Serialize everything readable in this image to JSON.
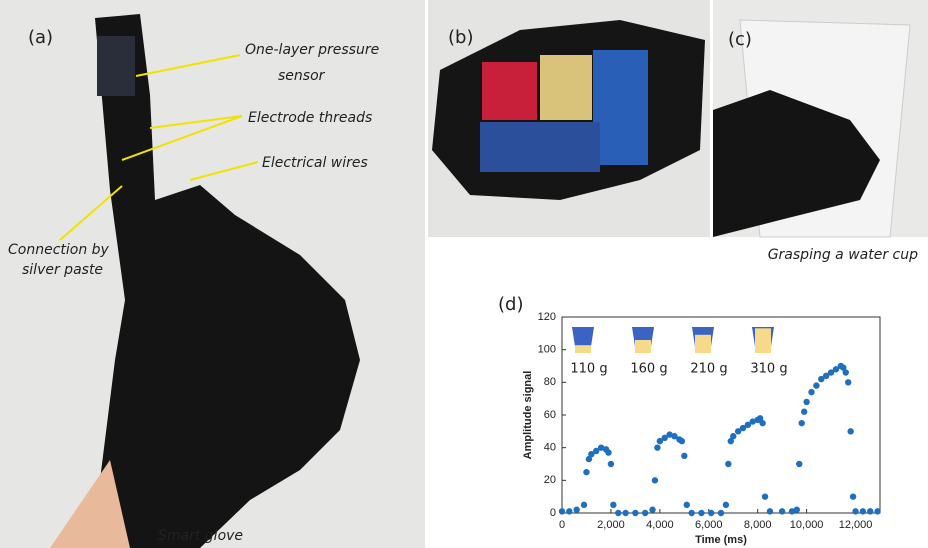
{
  "panels": {
    "a": {
      "label": "(a)",
      "callouts": [
        "One-layer pressure",
        "sensor",
        "Electrode threads",
        "Electrical wires",
        "Connection by",
        "silver paste"
      ],
      "caption": "Smart glove"
    },
    "b": {
      "label": "(b)"
    },
    "c": {
      "label": "(c)",
      "caption": "Grasping a water cup"
    },
    "d": {
      "label": "(d)"
    }
  },
  "chart_data": {
    "type": "scatter",
    "xlabel": "Time (ms)",
    "ylabel": "Amplitude signal",
    "color": "#1f6fbf",
    "annotations": [
      "110 g",
      "160 g",
      "210 g",
      "310 g"
    ],
    "xlim": [
      0,
      13000
    ],
    "ylim": [
      0,
      120
    ],
    "xticks": [
      0,
      {
        "value": 2000,
        "label": "2,000"
      },
      {
        "value": 4000,
        "label": "4,000"
      },
      {
        "value": 6000,
        "label": "6,000"
      },
      {
        "value": 8000,
        "label": "8,000"
      },
      {
        "value": 10000,
        "label": "10,000"
      },
      {
        "value": 12000,
        "label": "12,000"
      }
    ],
    "yticks": [
      0,
      20,
      40,
      60,
      80,
      100,
      120
    ],
    "x": [
      0,
      300,
      600,
      900,
      1000,
      1100,
      1200,
      1400,
      1600,
      1800,
      1900,
      2000,
      2100,
      2300,
      2600,
      3000,
      3400,
      3700,
      3800,
      3900,
      4000,
      4200,
      4400,
      4600,
      4800,
      4900,
      5000,
      5100,
      5300,
      5700,
      6100,
      6500,
      6700,
      6800,
      6900,
      7000,
      7200,
      7400,
      7600,
      7800,
      8000,
      8100,
      8200,
      8300,
      8500,
      9000,
      9400,
      9600,
      9700,
      9800,
      9900,
      10000,
      10200,
      10400,
      10600,
      10800,
      11000,
      11200,
      11400,
      11500,
      11600,
      11700,
      11800,
      11900,
      12000,
      12300,
      12600,
      12900
    ],
    "values": [
      1,
      1,
      2,
      5,
      25,
      33,
      36,
      38,
      40,
      39,
      37,
      30,
      5,
      0,
      0,
      0,
      0,
      2,
      20,
      40,
      44,
      46,
      48,
      47,
      45,
      44,
      35,
      5,
      0,
      0,
      0,
      0,
      5,
      30,
      44,
      47,
      50,
      52,
      54,
      56,
      57,
      58,
      55,
      10,
      1,
      1,
      1,
      2,
      30,
      55,
      62,
      68,
      74,
      78,
      82,
      84,
      86,
      88,
      90,
      89,
      86,
      80,
      50,
      10,
      1,
      1,
      1,
      1
    ]
  }
}
